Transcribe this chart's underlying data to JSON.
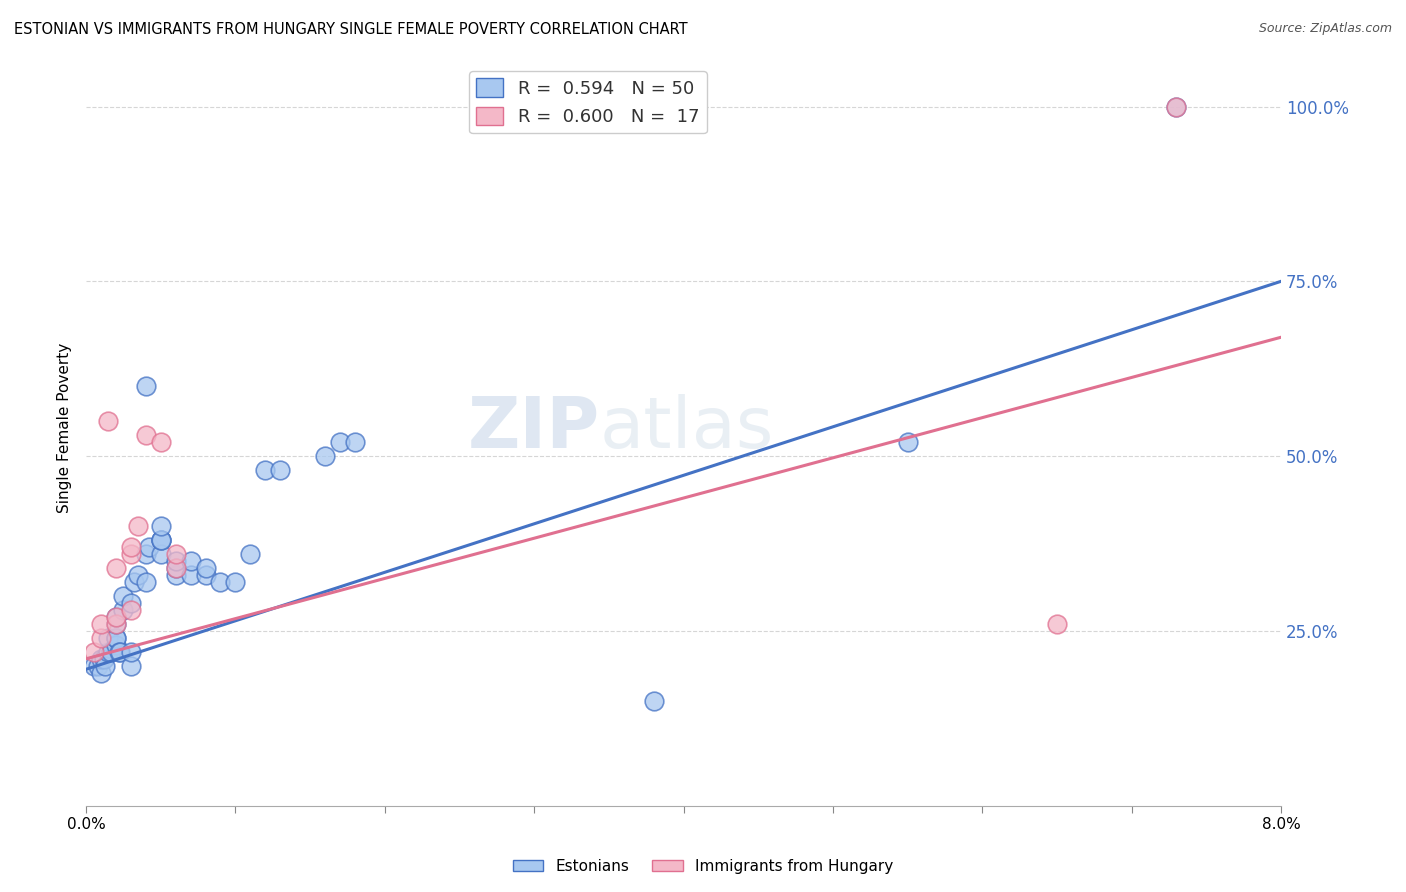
{
  "title": "ESTONIAN VS IMMIGRANTS FROM HUNGARY SINGLE FEMALE POVERTY CORRELATION CHART",
  "source": "Source: ZipAtlas.com",
  "ylabel": "Single Female Poverty",
  "xlim": [
    0.0,
    0.08
  ],
  "ylim": [
    0.0,
    1.08
  ],
  "xticks": [
    0.0,
    0.01,
    0.02,
    0.03,
    0.04,
    0.05,
    0.06,
    0.07,
    0.08
  ],
  "xticklabels": [
    "0.0%",
    "",
    "",
    "",
    "",
    "",
    "",
    "",
    "8.0%"
  ],
  "yticks": [
    0.25,
    0.5,
    0.75,
    1.0
  ],
  "yticklabels": [
    "25.0%",
    "50.0%",
    "75.0%",
    "100.0%"
  ],
  "color_estonian": "#a8c8f0",
  "color_hungary": "#f4b8c8",
  "color_line_estonian": "#4472c4",
  "color_line_hungary": "#e07090",
  "color_ytick": "#4472c4",
  "watermark_zip": "ZIP",
  "watermark_atlas": "atlas",
  "estonians_x": [
    0.0005,
    0.0008,
    0.001,
    0.001,
    0.0012,
    0.0013,
    0.0015,
    0.0015,
    0.0017,
    0.002,
    0.002,
    0.002,
    0.002,
    0.002,
    0.0022,
    0.0023,
    0.0025,
    0.0025,
    0.003,
    0.003,
    0.003,
    0.0032,
    0.0035,
    0.004,
    0.004,
    0.0042,
    0.004,
    0.005,
    0.005,
    0.005,
    0.005,
    0.005,
    0.006,
    0.006,
    0.006,
    0.007,
    0.007,
    0.008,
    0.008,
    0.009,
    0.01,
    0.011,
    0.012,
    0.013,
    0.016,
    0.017,
    0.018,
    0.038,
    0.055,
    0.073
  ],
  "estonians_y": [
    0.2,
    0.2,
    0.19,
    0.21,
    0.21,
    0.2,
    0.22,
    0.24,
    0.22,
    0.23,
    0.24,
    0.24,
    0.26,
    0.27,
    0.22,
    0.22,
    0.28,
    0.3,
    0.2,
    0.22,
    0.29,
    0.32,
    0.33,
    0.32,
    0.36,
    0.37,
    0.6,
    0.38,
    0.36,
    0.38,
    0.38,
    0.4,
    0.33,
    0.34,
    0.35,
    0.33,
    0.35,
    0.33,
    0.34,
    0.32,
    0.32,
    0.36,
    0.48,
    0.48,
    0.5,
    0.52,
    0.52,
    0.15,
    0.52,
    1.0
  ],
  "hungary_x": [
    0.0005,
    0.001,
    0.001,
    0.0015,
    0.002,
    0.002,
    0.002,
    0.003,
    0.003,
    0.003,
    0.0035,
    0.004,
    0.005,
    0.006,
    0.006,
    0.065,
    0.073
  ],
  "hungary_y": [
    0.22,
    0.24,
    0.26,
    0.55,
    0.26,
    0.27,
    0.34,
    0.28,
    0.36,
    0.37,
    0.4,
    0.53,
    0.52,
    0.34,
    0.36,
    0.26,
    1.0
  ],
  "trend_est_x0": 0.0,
  "trend_est_y0": 0.195,
  "trend_est_x1": 0.08,
  "trend_est_y1": 0.75,
  "trend_hun_x0": 0.0,
  "trend_hun_y0": 0.21,
  "trend_hun_x1": 0.08,
  "trend_hun_y1": 0.67
}
